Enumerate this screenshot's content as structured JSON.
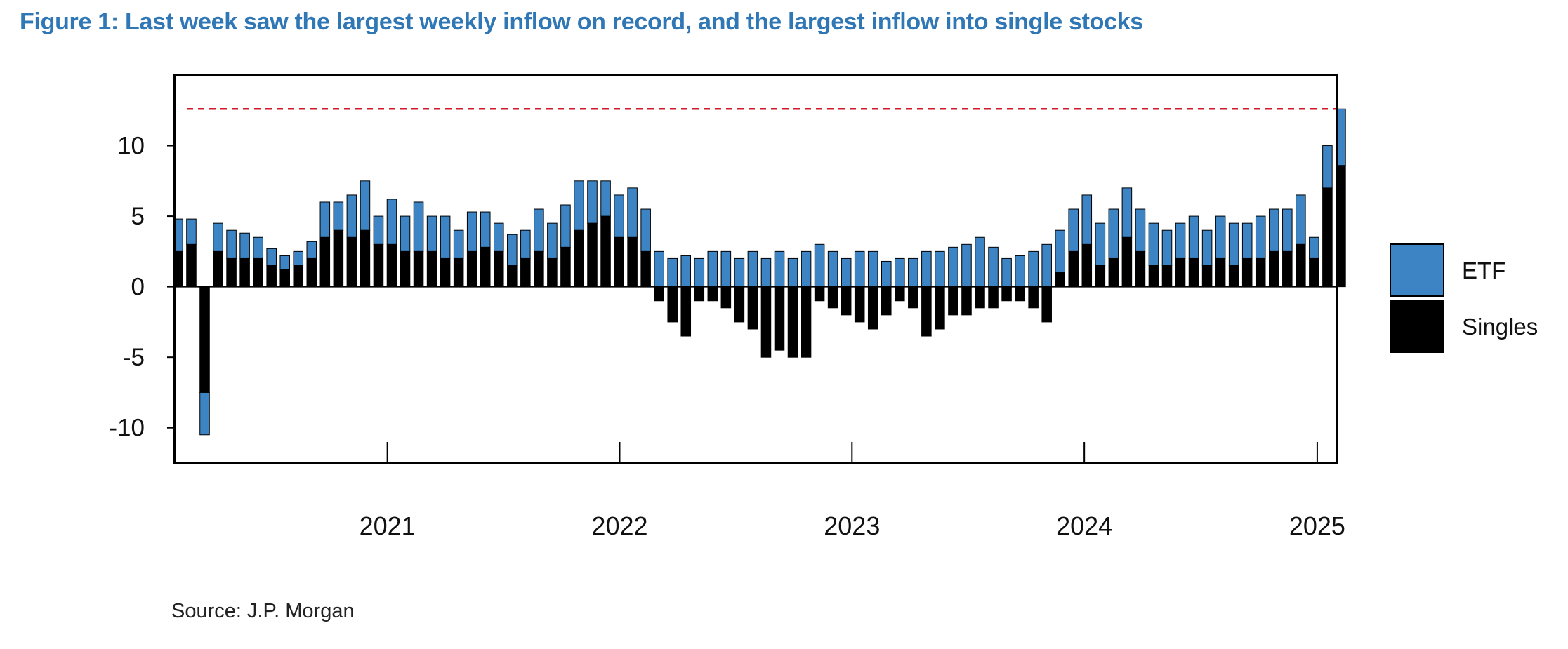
{
  "title": "Figure 1: Last week saw the largest weekly inflow on record, and the largest inflow into single stocks",
  "source": "Source: J.P. Morgan",
  "colors": {
    "title": "#2f77b5",
    "etf": "#3d84c4",
    "singles": "#000000",
    "reference_line": "#d11a2a"
  },
  "chart_data": {
    "type": "bar",
    "stacked": true,
    "grid": false,
    "legend_position": "right",
    "x_range": [
      "2020-02",
      "2025-02"
    ],
    "ylim": [
      -12.5,
      15
    ],
    "y_ticks": [
      10,
      5,
      0,
      -5,
      -10
    ],
    "x_tick_labels": [
      "2021",
      "2022",
      "2023",
      "2024",
      "2025"
    ],
    "reference_line": {
      "y": 12.6,
      "style": "dashed"
    },
    "legend": [
      {
        "name": "ETF"
      },
      {
        "name": "Singles"
      }
    ],
    "dates": [
      "2020-02-07",
      "2020-02-28",
      "2020-03-20",
      "2020-04-10",
      "2020-05-01",
      "2020-05-22",
      "2020-06-12",
      "2020-07-03",
      "2020-07-24",
      "2020-08-14",
      "2020-09-04",
      "2020-09-25",
      "2020-10-16",
      "2020-11-06",
      "2020-11-27",
      "2020-12-18",
      "2021-01-08",
      "2021-01-29",
      "2021-02-19",
      "2021-03-12",
      "2021-04-02",
      "2021-04-23",
      "2021-05-14",
      "2021-06-04",
      "2021-06-25",
      "2021-07-16",
      "2021-08-06",
      "2021-08-27",
      "2021-09-17",
      "2021-10-08",
      "2021-10-29",
      "2021-11-19",
      "2021-12-10",
      "2021-12-31",
      "2022-01-21",
      "2022-02-11",
      "2022-03-04",
      "2022-03-25",
      "2022-04-15",
      "2022-05-06",
      "2022-05-27",
      "2022-06-17",
      "2022-07-08",
      "2022-07-29",
      "2022-08-19",
      "2022-09-09",
      "2022-09-30",
      "2022-10-21",
      "2022-11-11",
      "2022-12-02",
      "2022-12-23",
      "2023-01-13",
      "2023-02-03",
      "2023-02-24",
      "2023-03-17",
      "2023-04-07",
      "2023-04-28",
      "2023-05-19",
      "2023-06-09",
      "2023-06-30",
      "2023-07-21",
      "2023-08-11",
      "2023-09-01",
      "2023-09-22",
      "2023-10-13",
      "2023-11-03",
      "2023-11-24",
      "2023-12-15",
      "2024-01-05",
      "2024-01-26",
      "2024-02-16",
      "2024-03-08",
      "2024-03-29",
      "2024-04-19",
      "2024-05-10",
      "2024-05-31",
      "2024-06-21",
      "2024-07-12",
      "2024-08-02",
      "2024-08-23",
      "2024-09-13",
      "2024-10-04",
      "2024-10-25",
      "2024-11-15",
      "2024-12-06",
      "2024-12-27",
      "2025-01-17",
      "2025-02-07"
    ],
    "series": [
      {
        "name": "ETF",
        "values": [
          2.3,
          1.8,
          -3.0,
          2.0,
          2.0,
          1.8,
          1.5,
          1.2,
          1.0,
          1.0,
          1.2,
          2.5,
          2.0,
          3.0,
          3.5,
          2.0,
          3.2,
          2.5,
          3.5,
          2.5,
          3.0,
          2.0,
          2.8,
          2.5,
          2.0,
          2.2,
          2.0,
          3.0,
          2.5,
          3.0,
          3.5,
          3.0,
          2.5,
          3.0,
          3.5,
          3.0,
          2.5,
          2.0,
          2.2,
          2.0,
          2.5,
          2.5,
          2.0,
          2.5,
          2.0,
          2.5,
          2.0,
          2.5,
          3.0,
          2.5,
          2.0,
          2.5,
          2.5,
          1.8,
          2.0,
          2.0,
          2.5,
          2.5,
          2.8,
          3.0,
          3.5,
          2.8,
          2.0,
          2.2,
          2.5,
          3.0,
          3.0,
          3.0,
          3.5,
          3.0,
          3.5,
          3.5,
          3.0,
          3.0,
          2.5,
          2.5,
          3.0,
          2.5,
          3.0,
          3.0,
          2.5,
          3.0,
          3.0,
          3.0,
          3.5,
          1.5,
          3.0,
          4.0
        ]
      },
      {
        "name": "Singles",
        "values": [
          2.5,
          3.0,
          -7.5,
          2.5,
          2.0,
          2.0,
          2.0,
          1.5,
          1.2,
          1.5,
          2.0,
          3.5,
          4.0,
          3.5,
          4.0,
          3.0,
          3.0,
          2.5,
          2.5,
          2.5,
          2.0,
          2.0,
          2.5,
          2.8,
          2.5,
          1.5,
          2.0,
          2.5,
          2.0,
          2.8,
          4.0,
          4.5,
          5.0,
          3.5,
          3.5,
          2.5,
          -1.0,
          -2.5,
          -3.5,
          -1.0,
          -1.0,
          -1.5,
          -2.5,
          -3.0,
          -5.0,
          -4.5,
          -5.0,
          -5.0,
          -1.0,
          -1.5,
          -2.0,
          -2.5,
          -3.0,
          -2.0,
          -1.0,
          -1.5,
          -3.5,
          -3.0,
          -2.0,
          -2.0,
          -1.5,
          -1.5,
          -1.0,
          -1.0,
          -1.5,
          -2.5,
          1.0,
          2.5,
          3.0,
          1.5,
          2.0,
          3.5,
          2.5,
          1.5,
          1.5,
          2.0,
          2.0,
          1.5,
          2.0,
          1.5,
          2.0,
          2.0,
          2.5,
          2.5,
          3.0,
          2.0,
          7.0,
          8.6
        ]
      }
    ]
  }
}
